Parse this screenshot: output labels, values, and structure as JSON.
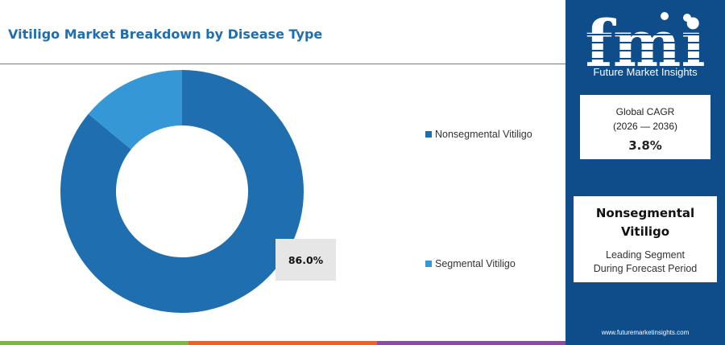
{
  "chart_data": {
    "type": "pie",
    "title": "Vitiligo Market Breakdown by Disease Type",
    "categories": [
      "Nonsegmental Vitiligo",
      "Segmental Vitiligo"
    ],
    "values": [
      86.0,
      14.0
    ],
    "colors": [
      "#1f6fb0",
      "#3597d6"
    ],
    "donut": true,
    "data_labels": [
      "86.0%"
    ],
    "legend_position": "right"
  },
  "brand": {
    "logo_text": "fmi",
    "name": "Future Market Insights",
    "website": "www.futuremarketinsights.com",
    "panel_color": "#0f4c8a"
  },
  "cagr": {
    "label_line1": "Global CAGR",
    "label_line2": "(2026 — 2036)",
    "value": "3.8%"
  },
  "leading_segment": {
    "name_line1": "Nonsegmental",
    "name_line2": "Vitiligo",
    "caption_line1": "Leading Segment",
    "caption_line2": "During Forecast Period"
  },
  "bottom_bar_colors": [
    "#7ab648",
    "#e8622c",
    "#8b4b9e"
  ]
}
